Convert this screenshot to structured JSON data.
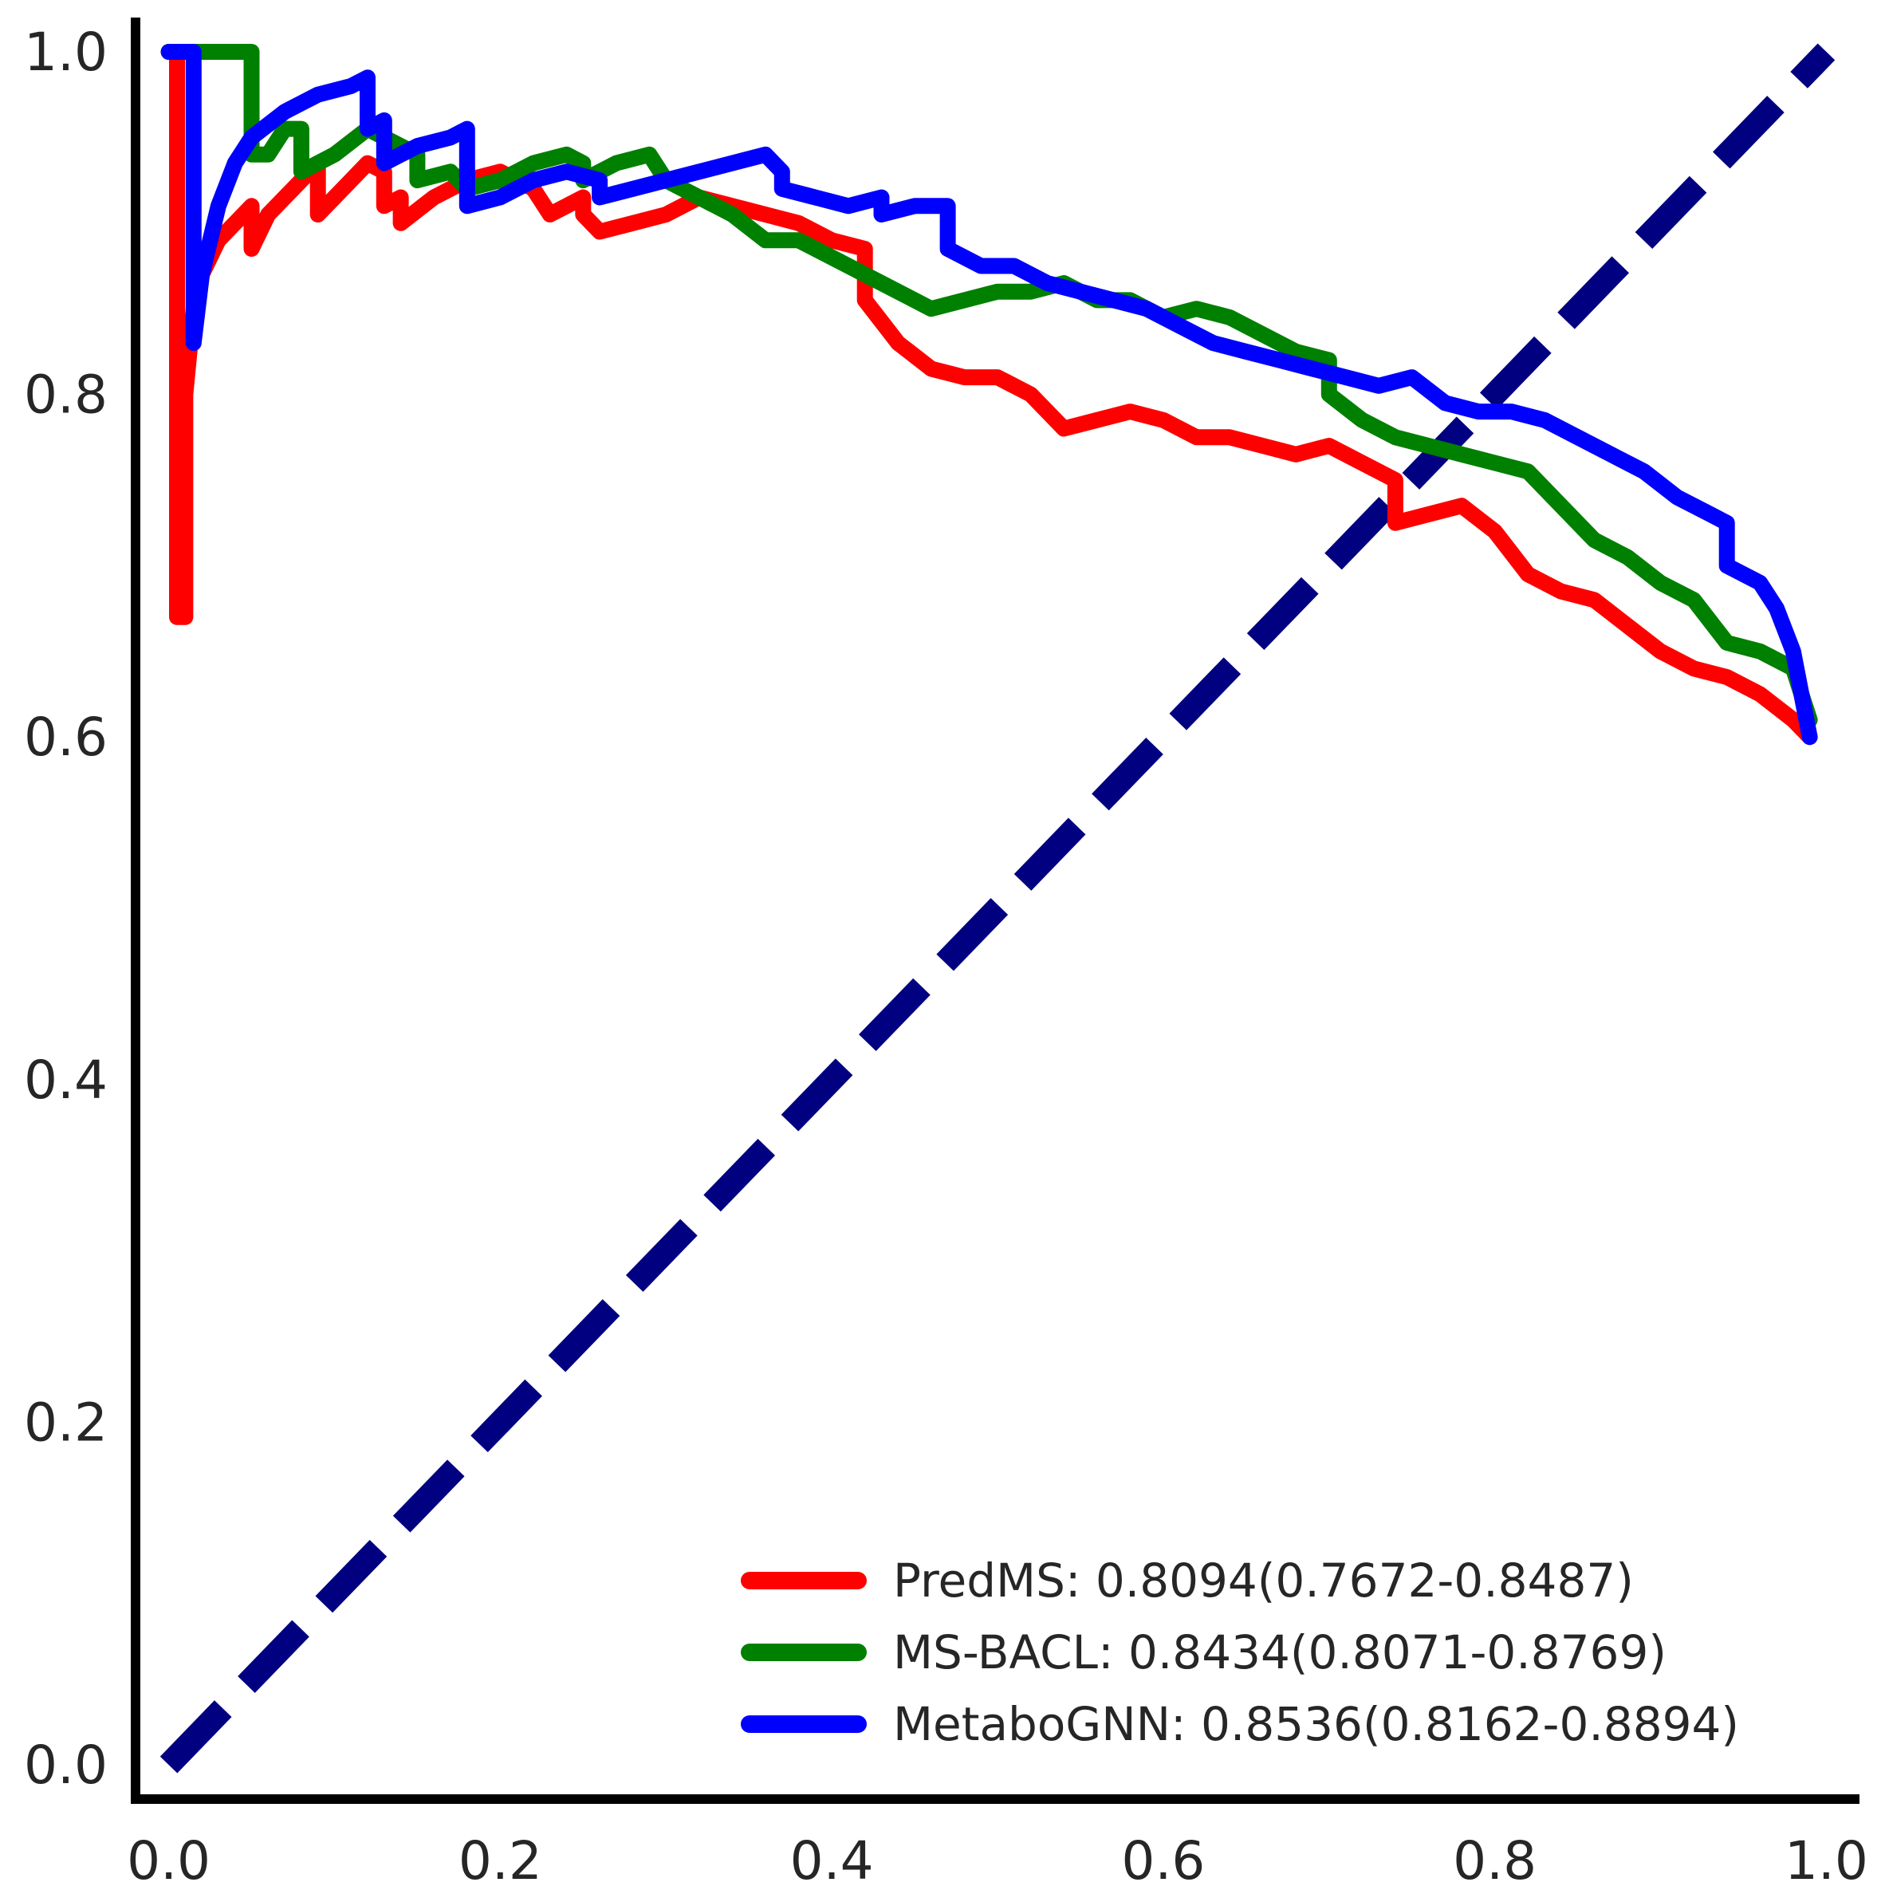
{
  "chart_data": {
    "type": "line",
    "title": "",
    "xlabel": "",
    "ylabel": "",
    "xlim": [
      -0.02,
      1.02
    ],
    "ylim": [
      -0.02,
      1.02
    ],
    "x_ticks": [
      "0.0",
      "0.2",
      "0.4",
      "0.6",
      "0.8",
      "1.0"
    ],
    "y_ticks": [
      "0.0",
      "0.2",
      "0.4",
      "0.6",
      "0.8",
      "1.0"
    ],
    "x_tick_values": [
      0,
      0.2,
      0.4,
      0.6,
      0.8,
      1.0
    ],
    "y_tick_values": [
      0,
      0.2,
      0.4,
      0.6,
      0.8,
      1.0
    ],
    "grid": false,
    "legend_position": "lower-right",
    "reference_line": {
      "x": [
        0,
        1
      ],
      "y": [
        0,
        1
      ],
      "color": "#000080",
      "style": "dashed"
    },
    "series": [
      {
        "name": "PredMS: 0.8094(0.7672-0.8487)",
        "color": "#ff0000",
        "x": [
          0.0,
          0.005,
          0.005,
          0.01,
          0.01,
          0.015,
          0.02,
          0.03,
          0.04,
          0.05,
          0.05,
          0.06,
          0.08,
          0.09,
          0.09,
          0.11,
          0.12,
          0.13,
          0.13,
          0.14,
          0.14,
          0.16,
          0.18,
          0.2,
          0.22,
          0.23,
          0.25,
          0.25,
          0.26,
          0.26,
          0.28,
          0.3,
          0.32,
          0.34,
          0.36,
          0.38,
          0.4,
          0.42,
          0.42,
          0.44,
          0.46,
          0.48,
          0.5,
          0.52,
          0.54,
          0.56,
          0.58,
          0.6,
          0.62,
          0.64,
          0.66,
          0.68,
          0.7,
          0.71,
          0.72,
          0.74,
          0.74,
          0.76,
          0.78,
          0.8,
          0.82,
          0.84,
          0.86,
          0.88,
          0.9,
          0.92,
          0.94,
          0.96,
          0.98,
          0.99
        ],
        "y": [
          1.0,
          1.0,
          0.67,
          0.67,
          0.8,
          0.85,
          0.87,
          0.89,
          0.9,
          0.91,
          0.885,
          0.905,
          0.925,
          0.935,
          0.905,
          0.925,
          0.935,
          0.93,
          0.91,
          0.915,
          0.9,
          0.915,
          0.925,
          0.93,
          0.92,
          0.905,
          0.915,
          0.905,
          0.895,
          0.895,
          0.9,
          0.905,
          0.915,
          0.91,
          0.905,
          0.9,
          0.89,
          0.885,
          0.855,
          0.83,
          0.815,
          0.81,
          0.81,
          0.8,
          0.78,
          0.785,
          0.79,
          0.785,
          0.775,
          0.775,
          0.77,
          0.765,
          0.77,
          0.765,
          0.76,
          0.75,
          0.725,
          0.73,
          0.735,
          0.72,
          0.695,
          0.685,
          0.68,
          0.665,
          0.65,
          0.64,
          0.635,
          0.625,
          0.61,
          0.6
        ]
      },
      {
        "name": "MS-BACL: 0.8434(0.8071-0.8769)",
        "color": "#008000",
        "x": [
          0.0,
          0.05,
          0.05,
          0.06,
          0.07,
          0.08,
          0.08,
          0.1,
          0.12,
          0.14,
          0.15,
          0.15,
          0.17,
          0.18,
          0.2,
          0.22,
          0.24,
          0.25,
          0.25,
          0.27,
          0.29,
          0.3,
          0.32,
          0.34,
          0.36,
          0.38,
          0.4,
          0.42,
          0.44,
          0.46,
          0.48,
          0.5,
          0.52,
          0.54,
          0.56,
          0.58,
          0.6,
          0.62,
          0.64,
          0.66,
          0.68,
          0.7,
          0.7,
          0.72,
          0.74,
          0.76,
          0.78,
          0.8,
          0.82,
          0.84,
          0.86,
          0.88,
          0.9,
          0.92,
          0.94,
          0.96,
          0.98,
          0.99
        ],
        "y": [
          1.0,
          1.0,
          0.94,
          0.94,
          0.955,
          0.955,
          0.93,
          0.94,
          0.955,
          0.945,
          0.94,
          0.925,
          0.93,
          0.92,
          0.925,
          0.935,
          0.94,
          0.935,
          0.925,
          0.935,
          0.94,
          0.925,
          0.915,
          0.905,
          0.89,
          0.89,
          0.88,
          0.87,
          0.86,
          0.85,
          0.855,
          0.86,
          0.86,
          0.865,
          0.855,
          0.855,
          0.845,
          0.85,
          0.845,
          0.835,
          0.825,
          0.82,
          0.8,
          0.785,
          0.775,
          0.77,
          0.765,
          0.76,
          0.755,
          0.735,
          0.715,
          0.705,
          0.69,
          0.68,
          0.655,
          0.65,
          0.64,
          0.61
        ]
      },
      {
        "name": "MetaboGNN: 0.8536(0.8162-0.8894)",
        "color": "#0000ff",
        "x": [
          0.0,
          0.015,
          0.015,
          0.02,
          0.03,
          0.04,
          0.05,
          0.07,
          0.09,
          0.11,
          0.12,
          0.12,
          0.13,
          0.13,
          0.15,
          0.17,
          0.18,
          0.18,
          0.2,
          0.22,
          0.24,
          0.26,
          0.26,
          0.28,
          0.3,
          0.32,
          0.34,
          0.36,
          0.37,
          0.37,
          0.39,
          0.41,
          0.43,
          0.43,
          0.45,
          0.47,
          0.47,
          0.49,
          0.51,
          0.53,
          0.55,
          0.57,
          0.59,
          0.61,
          0.63,
          0.65,
          0.67,
          0.69,
          0.71,
          0.73,
          0.75,
          0.77,
          0.79,
          0.81,
          0.83,
          0.85,
          0.87,
          0.89,
          0.91,
          0.93,
          0.94,
          0.94,
          0.96,
          0.97,
          0.98,
          0.99
        ],
        "y": [
          1.0,
          1.0,
          0.83,
          0.87,
          0.91,
          0.935,
          0.95,
          0.965,
          0.975,
          0.98,
          0.985,
          0.955,
          0.96,
          0.935,
          0.945,
          0.95,
          0.955,
          0.91,
          0.915,
          0.925,
          0.93,
          0.925,
          0.915,
          0.92,
          0.925,
          0.93,
          0.935,
          0.94,
          0.93,
          0.92,
          0.915,
          0.91,
          0.915,
          0.905,
          0.91,
          0.91,
          0.885,
          0.875,
          0.875,
          0.865,
          0.86,
          0.855,
          0.85,
          0.84,
          0.83,
          0.825,
          0.82,
          0.815,
          0.81,
          0.805,
          0.81,
          0.795,
          0.79,
          0.79,
          0.785,
          0.775,
          0.765,
          0.755,
          0.74,
          0.73,
          0.725,
          0.7,
          0.69,
          0.675,
          0.65,
          0.6
        ]
      }
    ]
  }
}
